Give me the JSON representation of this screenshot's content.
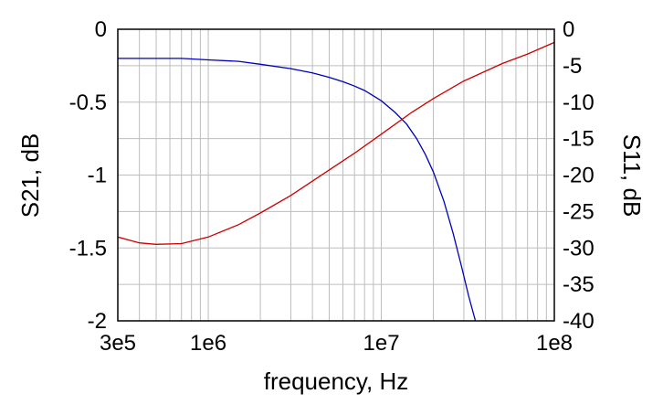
{
  "chart_data": {
    "type": "line",
    "title": "",
    "xlabel": "frequency, Hz",
    "ylabel_left": "S21, dB",
    "ylabel_right": "S11, dB",
    "x_scale": "log",
    "xlim": [
      300000,
      100000000
    ],
    "ylim_left": [
      -2,
      0
    ],
    "ylim_right": [
      -40,
      0
    ],
    "grid": true,
    "x_ticks": [
      {
        "value": 300000,
        "label": "3e5"
      },
      {
        "value": 1000000,
        "label": "1e6"
      },
      {
        "value": 10000000,
        "label": "1e7"
      },
      {
        "value": 100000000,
        "label": "1e8"
      }
    ],
    "y_ticks_left": [
      {
        "value": 0,
        "label": "0"
      },
      {
        "value": -0.5,
        "label": "-0.5"
      },
      {
        "value": -1,
        "label": "-1"
      },
      {
        "value": -1.5,
        "label": "-1.5"
      },
      {
        "value": -2,
        "label": "-2"
      }
    ],
    "y_ticks_right": [
      {
        "value": 0,
        "label": "0"
      },
      {
        "value": -5,
        "label": "-5"
      },
      {
        "value": -10,
        "label": "-10"
      },
      {
        "value": -15,
        "label": "-15"
      },
      {
        "value": -20,
        "label": "-20"
      },
      {
        "value": -25,
        "label": "-25"
      },
      {
        "value": -30,
        "label": "-30"
      },
      {
        "value": -35,
        "label": "-35"
      },
      {
        "value": -40,
        "label": "-40"
      }
    ],
    "series": [
      {
        "axis": "left",
        "color": "#0000bb",
        "x": [
          300000,
          500000,
          700000,
          1000000,
          1500000,
          2000000,
          3000000,
          4000000,
          5000000,
          6000000,
          7000000,
          8000000,
          10000000,
          12000000,
          14000000,
          16000000,
          18000000,
          20000000,
          23000000,
          26000000,
          29000000,
          32000000,
          35000000
        ],
        "values": [
          -0.2,
          -0.2,
          -0.2,
          -0.21,
          -0.22,
          -0.24,
          -0.27,
          -0.3,
          -0.33,
          -0.36,
          -0.39,
          -0.42,
          -0.49,
          -0.57,
          -0.65,
          -0.75,
          -0.86,
          -0.98,
          -1.18,
          -1.4,
          -1.62,
          -1.83,
          -2.0
        ]
      },
      {
        "axis": "right",
        "color": "#cc0000",
        "x": [
          300000,
          400000,
          500000,
          700000,
          1000000,
          1500000,
          2000000,
          3000000,
          5000000,
          7000000,
          10000000,
          15000000,
          20000000,
          30000000,
          50000000,
          70000000,
          100000000
        ],
        "values": [
          -28.5,
          -29.3,
          -29.5,
          -29.4,
          -28.5,
          -26.8,
          -25.2,
          -22.8,
          -19.3,
          -17.0,
          -14.4,
          -11.4,
          -9.5,
          -7.1,
          -4.7,
          -3.4,
          -1.8
        ]
      }
    ]
  }
}
